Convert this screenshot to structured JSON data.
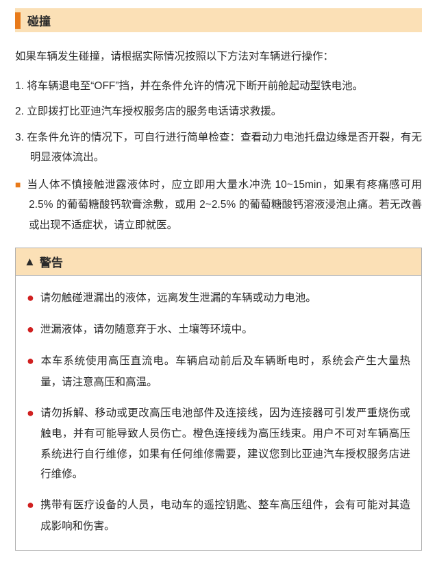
{
  "section": {
    "title": "碰撞"
  },
  "intro": "如果车辆发生碰撞，请根据实际情况按照以下方法对车辆进行操作：",
  "steps": [
    {
      "num": "1.",
      "text": "将车辆退电至“OFF”挡，并在条件允许的情况下断开前舱起动型铁电池。"
    },
    {
      "num": "2.",
      "text": "立即拨打比亚迪汽车授权服务店的服务电话请求救援。"
    },
    {
      "num": "3.",
      "text": "在条件允许的情况下，可自行进行简单检查：查看动力电池托盘边缘是否开裂，有无明显液体流出。"
    }
  ],
  "note": "当人体不慎接触泄露液体时，应立即用大量水冲洗 10~15min，如果有疼痛感可用 2.5% 的葡萄糖酸钙软膏涂敷，或用 2~2.5% 的葡萄糖酸钙溶液浸泡止痛。若无改善或出现不适症状，请立即就医。",
  "warning": {
    "title": "警告",
    "items": [
      "请勿触碰泄漏出的液体，远离发生泄漏的车辆或动力电池。",
      "泄漏液体，请勿随意弃于水、土壤等环境中。",
      "本车系统使用高压直流电。车辆启动前后及车辆断电时，系统会产生大量热量，请注意高压和高温。",
      "请勿拆解、移动或更改高压电池部件及连接线，因为连接器可引发严重烧伤或触电，并有可能导致人员伤亡。橙色连接线为高压线束。用户不可对车辆高压系统进行自行维修，如果有任何维修需要，建议您到比亚迪汽车授权服务店进行维修。",
      "携带有医疗设备的人员，电动车的遥控钥匙、整车高压组件，会有可能对其造成影响和伤害。"
    ]
  },
  "colors": {
    "header_bg": "#fbe0b6",
    "accent": "#e87a1a",
    "bullet": "#d02020",
    "border": "#b0b0b0",
    "text": "#2a2a2a"
  }
}
